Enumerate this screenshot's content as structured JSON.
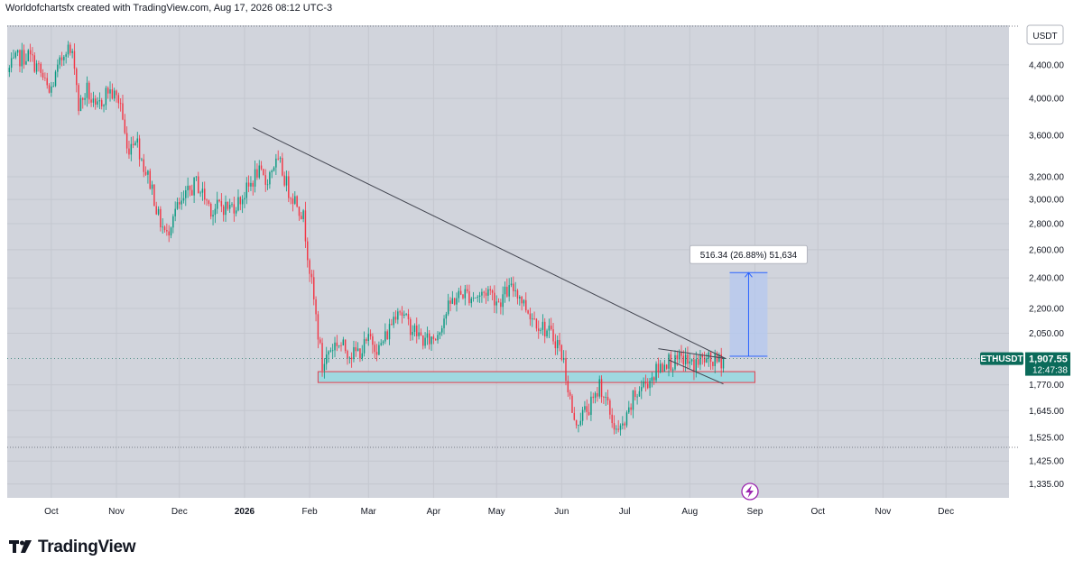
{
  "header": {
    "caption": "Worldofchartsfx created with TradingView.com, Aug 17, 2026 08:12 UTC-3"
  },
  "footer": {
    "brand": "TradingView",
    "logo_icon": "tradingview-logo-icon"
  },
  "colors": {
    "up": "#089981",
    "down": "#f23645",
    "background": "#d1d4dc",
    "panel": "#ffffff",
    "zone_fill": "#9fd8e0",
    "zone_border": "#e0404f",
    "projection_fill": "#b4c8f0",
    "projection_line": "#2962ff",
    "trendline": "#434651",
    "price_tag": "#0b6b5a"
  },
  "chart_data": {
    "type": "candlestick",
    "symbol": "ETHUSDT",
    "currency": "USDT",
    "scale": "log",
    "ylim": [
      1290,
      4900
    ],
    "y_ticks": [
      {
        "value": 4400,
        "label": "4,400.00"
      },
      {
        "value": 4000,
        "label": "4,000.00"
      },
      {
        "value": 3600,
        "label": "3,600.00"
      },
      {
        "value": 3200,
        "label": "3,200.00"
      },
      {
        "value": 3000,
        "label": "3,000.00"
      },
      {
        "value": 2800,
        "label": "2,800.00"
      },
      {
        "value": 2600,
        "label": "2,600.00"
      },
      {
        "value": 2400,
        "label": "2,400.00"
      },
      {
        "value": 2200,
        "label": "2,200.00"
      },
      {
        "value": 2050,
        "label": "2,050.00"
      },
      {
        "value": 1770,
        "label": "1,770.00"
      },
      {
        "value": 1645,
        "label": "1,645.00"
      },
      {
        "value": 1525,
        "label": "1,525.00"
      },
      {
        "value": 1425,
        "label": "1,425.00"
      },
      {
        "value": 1335,
        "label": "1,335.00"
      }
    ],
    "x_ticks": [
      {
        "date": "2025-10-01",
        "label": "Oct",
        "bold": false
      },
      {
        "date": "2025-11-01",
        "label": "Nov",
        "bold": false
      },
      {
        "date": "2025-12-01",
        "label": "Dec",
        "bold": false
      },
      {
        "date": "2026-01-01",
        "label": "2026",
        "bold": true
      },
      {
        "date": "2026-02-01",
        "label": "Feb",
        "bold": false
      },
      {
        "date": "2026-03-01",
        "label": "Mar",
        "bold": false
      },
      {
        "date": "2026-04-01",
        "label": "Apr",
        "bold": false
      },
      {
        "date": "2026-05-01",
        "label": "May",
        "bold": false
      },
      {
        "date": "2026-06-01",
        "label": "Jun",
        "bold": false
      },
      {
        "date": "2026-07-01",
        "label": "Jul",
        "bold": false
      },
      {
        "date": "2026-08-01",
        "label": "Aug",
        "bold": false
      },
      {
        "date": "2026-09-01",
        "label": "Sep",
        "bold": false
      },
      {
        "date": "2026-10-01",
        "label": "Oct",
        "bold": false
      },
      {
        "date": "2026-11-01",
        "label": "Nov",
        "bold": false
      },
      {
        "date": "2026-12-01",
        "label": "Dec",
        "bold": false
      }
    ],
    "x_range": [
      "2025-09-10",
      "2026-12-31"
    ],
    "price_path": [
      [
        "2025-09-10",
        4310
      ],
      [
        "2025-09-15",
        4480
      ],
      [
        "2025-09-20",
        4520
      ],
      [
        "2025-09-25",
        4350
      ],
      [
        "2025-09-30",
        4050
      ],
      [
        "2025-10-05",
        4400
      ],
      [
        "2025-10-08",
        4650
      ],
      [
        "2025-10-12",
        4450
      ],
      [
        "2025-10-14",
        3900
      ],
      [
        "2025-10-18",
        4100
      ],
      [
        "2025-10-22",
        3850
      ],
      [
        "2025-10-28",
        4100
      ],
      [
        "2025-11-03",
        3950
      ],
      [
        "2025-11-06",
        3450
      ],
      [
        "2025-11-10",
        3600
      ],
      [
        "2025-11-14",
        3300
      ],
      [
        "2025-11-18",
        3100
      ],
      [
        "2025-11-21",
        2850
      ],
      [
        "2025-11-25",
        2700
      ],
      [
        "2025-11-28",
        2900
      ],
      [
        "2025-12-02",
        2950
      ],
      [
        "2025-12-05",
        3050
      ],
      [
        "2025-12-09",
        3150
      ],
      [
        "2025-12-12",
        3050
      ],
      [
        "2025-12-17",
        2900
      ],
      [
        "2025-12-20",
        2950
      ],
      [
        "2025-12-25",
        2930
      ],
      [
        "2025-12-29",
        2980
      ],
      [
        "2026-01-03",
        3100
      ],
      [
        "2026-01-07",
        3250
      ],
      [
        "2026-01-11",
        3150
      ],
      [
        "2026-01-15",
        3320
      ],
      [
        "2026-01-18",
        3300
      ],
      [
        "2026-01-22",
        3080
      ],
      [
        "2026-01-26",
        2980
      ],
      [
        "2026-01-29",
        2850
      ],
      [
        "2026-02-02",
        2350
      ],
      [
        "2026-02-05",
        2050
      ],
      [
        "2026-02-07",
        1860
      ],
      [
        "2026-02-10",
        1950
      ],
      [
        "2026-02-14",
        2000
      ],
      [
        "2026-02-18",
        1960
      ],
      [
        "2026-02-22",
        1930
      ],
      [
        "2026-02-26",
        1960
      ],
      [
        "2026-03-02",
        2020
      ],
      [
        "2026-03-06",
        1960
      ],
      [
        "2026-03-10",
        2050
      ],
      [
        "2026-03-15",
        2220
      ],
      [
        "2026-03-19",
        2120
      ],
      [
        "2026-03-24",
        2050
      ],
      [
        "2026-03-28",
        2000
      ],
      [
        "2026-04-02",
        2030
      ],
      [
        "2026-04-06",
        2150
      ],
      [
        "2026-04-10",
        2250
      ],
      [
        "2026-04-15",
        2300
      ],
      [
        "2026-04-19",
        2280
      ],
      [
        "2026-04-23",
        2280
      ],
      [
        "2026-04-27",
        2320
      ],
      [
        "2026-05-02",
        2240
      ],
      [
        "2026-05-06",
        2310
      ],
      [
        "2026-05-10",
        2330
      ],
      [
        "2026-05-14",
        2230
      ],
      [
        "2026-05-18",
        2150
      ],
      [
        "2026-05-22",
        2100
      ],
      [
        "2026-05-26",
        2050
      ],
      [
        "2026-05-30",
        2000
      ],
      [
        "2026-06-02",
        1890
      ],
      [
        "2026-06-05",
        1700
      ],
      [
        "2026-06-07",
        1580
      ],
      [
        "2026-06-10",
        1620
      ],
      [
        "2026-06-14",
        1660
      ],
      [
        "2026-06-17",
        1700
      ],
      [
        "2026-06-19",
        1780
      ],
      [
        "2026-06-22",
        1690
      ],
      [
        "2026-06-25",
        1600
      ],
      [
        "2026-06-28",
        1540
      ],
      [
        "2026-07-02",
        1600
      ],
      [
        "2026-07-05",
        1700
      ],
      [
        "2026-07-09",
        1760
      ],
      [
        "2026-07-13",
        1800
      ],
      [
        "2026-07-17",
        1850
      ],
      [
        "2026-07-21",
        1900
      ],
      [
        "2026-07-25",
        1880
      ],
      [
        "2026-07-29",
        1910
      ],
      [
        "2026-08-02",
        1870
      ],
      [
        "2026-08-06",
        1900
      ],
      [
        "2026-08-10",
        1895
      ],
      [
        "2026-08-14",
        1890
      ],
      [
        "2026-08-17",
        1907.55
      ]
    ],
    "last_price": {
      "symbol_label": "ETHUSDT",
      "price_label": "1,907.55",
      "countdown": "12:47:38",
      "value": 1907.55
    },
    "drawings": {
      "descending_trendline": {
        "from": [
          "2026-01-05",
          3680
        ],
        "to": [
          "2026-08-18",
          1908
        ]
      },
      "wedge_upper": {
        "from": [
          "2026-07-17",
          1962
        ],
        "to": [
          "2026-08-18",
          1908
        ]
      },
      "wedge_lower": {
        "from": [
          "2026-07-22",
          1900
        ],
        "to": [
          "2026-08-17",
          1775
        ]
      },
      "demand_zone": {
        "from": "2026-02-05",
        "to": "2026-09-01",
        "top": 1838,
        "bottom": 1782
      },
      "projection": {
        "from": "2026-08-20",
        "to": "2026-09-07",
        "bottom": 1920,
        "top": 2436
      },
      "projection_label": "516.34 (26.88%) 51,634"
    },
    "currency_badge": "USDT",
    "flash_icon": "lightning-icon"
  }
}
